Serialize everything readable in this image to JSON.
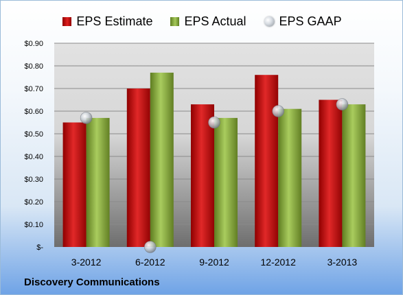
{
  "legend": {
    "estimate": "EPS Estimate",
    "actual": "EPS Actual",
    "gaap": "EPS GAAP"
  },
  "company": "Discovery Communications",
  "colors": {
    "estimate": "#c81d1d",
    "actual": "#8db043",
    "gaap": "#c9ced4"
  },
  "chart_data": {
    "type": "bar",
    "categories": [
      "3-2012",
      "6-2012",
      "9-2012",
      "12-2012",
      "3-2013"
    ],
    "series": [
      {
        "name": "EPS Estimate",
        "values": [
          0.55,
          0.7,
          0.63,
          0.76,
          0.65
        ]
      },
      {
        "name": "EPS Actual",
        "values": [
          0.57,
          0.77,
          0.57,
          0.61,
          0.63
        ]
      },
      {
        "name": "EPS GAAP",
        "values": [
          0.57,
          0.0,
          0.55,
          0.6,
          0.63
        ],
        "style": "marker"
      }
    ],
    "ylim": [
      0,
      0.9
    ],
    "yticks": [
      0,
      0.1,
      0.2,
      0.3,
      0.4,
      0.5,
      0.6,
      0.7,
      0.8,
      0.9
    ],
    "ytick_labels": [
      "$-",
      "$0.10",
      "$0.20",
      "$0.30",
      "$0.40",
      "$0.50",
      "$0.60",
      "$0.70",
      "$0.80",
      "$0.90"
    ],
    "grid": true,
    "legend_position": "top"
  }
}
